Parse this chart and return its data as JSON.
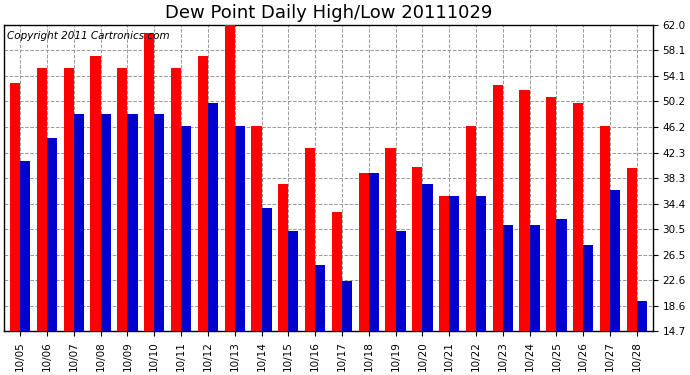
{
  "title": "Dew Point Daily High/Low 20111029",
  "copyright": "Copyright 2011 Cartronics.com",
  "categories": [
    "10/05",
    "10/06",
    "10/07",
    "10/08",
    "10/09",
    "10/10",
    "10/11",
    "10/12",
    "10/13",
    "10/14",
    "10/15",
    "10/16",
    "10/17",
    "10/18",
    "10/19",
    "10/20",
    "10/21",
    "10/22",
    "10/23",
    "10/24",
    "10/25",
    "10/26",
    "10/27",
    "10/28"
  ],
  "highs": [
    53.1,
    55.4,
    55.4,
    57.2,
    55.4,
    60.8,
    55.4,
    57.2,
    63.0,
    46.4,
    37.4,
    43.0,
    33.1,
    39.2,
    43.0,
    40.1,
    35.6,
    46.4,
    52.7,
    52.0,
    50.9,
    50.0,
    46.4,
    39.9
  ],
  "lows": [
    41.0,
    44.6,
    48.2,
    48.2,
    48.2,
    48.2,
    46.4,
    50.0,
    46.4,
    33.8,
    30.2,
    25.0,
    22.5,
    39.2,
    30.2,
    37.4,
    35.6,
    35.6,
    31.1,
    31.1,
    32.0,
    28.0,
    36.5,
    19.4
  ],
  "high_color": "#ff0000",
  "low_color": "#0000cc",
  "background_color": "#ffffff",
  "plot_background": "#ffffff",
  "grid_color": "#999999",
  "yticks": [
    14.7,
    18.6,
    22.6,
    26.5,
    30.5,
    34.4,
    38.3,
    42.3,
    46.2,
    50.2,
    54.1,
    58.1,
    62.0
  ],
  "ymin": 14.7,
  "ymax": 62.0,
  "title_fontsize": 13,
  "copyright_fontsize": 7.5,
  "bar_width": 0.38
}
